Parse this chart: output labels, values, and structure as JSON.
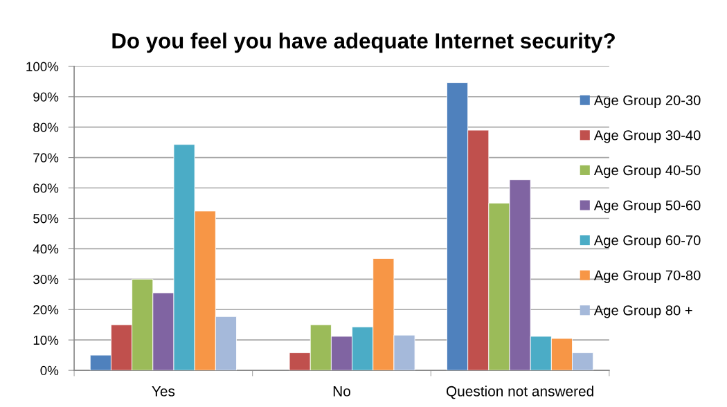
{
  "chart_data": {
    "type": "bar",
    "title": "Do you feel you have adequate Internet security?",
    "categories": [
      "Yes",
      "No",
      "Question not answered"
    ],
    "series": [
      {
        "name": "Age Group 20-30",
        "color": "#4f81bd",
        "values": [
          5,
          null,
          94.6
        ]
      },
      {
        "name": "Age Group 30-40",
        "color": "#c0504d",
        "values": [
          15,
          5.8,
          79
        ]
      },
      {
        "name": "Age Group 40-50",
        "color": "#9bbb59",
        "values": [
          30,
          15,
          55
        ]
      },
      {
        "name": "Age Group 50-60",
        "color": "#8064a2",
        "values": [
          25.5,
          11.2,
          62.7
        ]
      },
      {
        "name": "Age Group 60-70",
        "color": "#4bacc6",
        "values": [
          74.3,
          14.3,
          11.2
        ]
      },
      {
        "name": "Age Group 70-80",
        "color": "#f79646",
        "values": [
          52.4,
          36.8,
          10.5
        ]
      },
      {
        "name": "Age Group 80 +",
        "color": "#a5b9da",
        "values": [
          17.7,
          11.6,
          5.8
        ]
      }
    ],
    "ylim": [
      0,
      100
    ],
    "yticks": [
      {
        "value": 0,
        "label": "0%"
      },
      {
        "value": 10,
        "label": "10%"
      },
      {
        "value": 20,
        "label": "20%"
      },
      {
        "value": 30,
        "label": "30%"
      },
      {
        "value": 40,
        "label": "40%"
      },
      {
        "value": 50,
        "label": "50%"
      },
      {
        "value": 60,
        "label": "60%"
      },
      {
        "value": 70,
        "label": "70%"
      },
      {
        "value": 80,
        "label": "80%"
      },
      {
        "value": 90,
        "label": "90%"
      },
      {
        "value": 100,
        "label": "100%"
      }
    ],
    "grid": "y",
    "legend": "right"
  }
}
